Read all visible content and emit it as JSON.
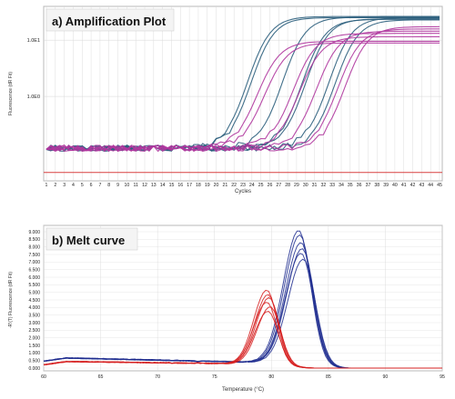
{
  "colors": {
    "blue_series": "#2c5f7d",
    "navy_series": "#1f2d8f",
    "magenta_series": "#b0379e",
    "red_series": "#d62020",
    "threshold": "#d94040",
    "frame": "#b9b9b9",
    "grid": "#d6d6d6",
    "title_box": "#f4f4f4"
  },
  "chart_data": [
    {
      "type": "line",
      "title": "a) Amplification Plot",
      "xlabel": "Cycles",
      "ylabel": "Fluorescence (dR Fit)",
      "x_tick_labels": [
        "1",
        "2",
        "3",
        "4",
        "5",
        "6",
        "7",
        "8",
        "9",
        "10",
        "11",
        "12",
        "13",
        "14",
        "15",
        "16",
        "17",
        "18",
        "19",
        "20",
        "21",
        "22",
        "23",
        "24",
        "25",
        "26",
        "27",
        "28",
        "29",
        "30",
        "31",
        "32",
        "33",
        "34",
        "35",
        "36",
        "37",
        "38",
        "39",
        "40",
        "41",
        "42",
        "43",
        "44",
        "45"
      ],
      "y_tick_labels": [
        "1.0E1",
        "1.0E0"
      ],
      "y_scale": "log",
      "xlim": [
        1,
        45
      ],
      "ylim_log10": [
        -1.5,
        1.6
      ],
      "threshold_log10": -1.35,
      "baseline_log10": -0.92,
      "series": [
        {
          "group": "blue",
          "ct": 23.5,
          "plateau_log10": 1.42
        },
        {
          "group": "blue",
          "ct": 23.9,
          "plateau_log10": 1.4
        },
        {
          "group": "blue",
          "ct": 27.4,
          "plateau_log10": 1.41
        },
        {
          "group": "blue",
          "ct": 29.6,
          "plateau_log10": 1.37
        },
        {
          "group": "blue",
          "ct": 30.0,
          "plateau_log10": 1.38
        },
        {
          "group": "blue",
          "ct": 32.6,
          "plateau_log10": 1.4
        },
        {
          "group": "blue",
          "ct": 33.3,
          "plateau_log10": 1.36
        },
        {
          "group": "magenta",
          "ct": 24.6,
          "plateau_log10": 0.98
        },
        {
          "group": "magenta",
          "ct": 25.4,
          "plateau_log10": 0.95
        },
        {
          "group": "magenta",
          "ct": 28.6,
          "plateau_log10": 1.12
        },
        {
          "group": "magenta",
          "ct": 29.3,
          "plateau_log10": 1.06
        },
        {
          "group": "magenta",
          "ct": 31.2,
          "plateau_log10": 1.16
        },
        {
          "group": "magenta",
          "ct": 33.6,
          "plateau_log10": 1.2
        },
        {
          "group": "magenta",
          "ct": 34.4,
          "plateau_log10": 1.24
        }
      ]
    },
    {
      "type": "line",
      "title": "b) Melt curve",
      "xlabel": "Temperature (°C)",
      "ylabel": "-R'(T) Fluorescence (dR Fit)",
      "x_tick_labels": [
        "60",
        "65",
        "70",
        "75",
        "80",
        "85",
        "90",
        "95"
      ],
      "y_tick_labels": [
        "0.000",
        "0.500",
        "1.000",
        "1.500",
        "2.000",
        "2.500",
        "3.000",
        "3.500",
        "4.000",
        "4.500",
        "5.000",
        "5.500",
        "6.000",
        "6.500",
        "7.000",
        "7.500",
        "8.000",
        "8.500",
        "9.000"
      ],
      "xlim": [
        60,
        95
      ],
      "ylim": [
        0,
        9
      ],
      "series": [
        {
          "group": "navy",
          "tm": 82.4,
          "peak": 8.9
        },
        {
          "group": "navy",
          "tm": 82.5,
          "peak": 8.6
        },
        {
          "group": "navy",
          "tm": 82.6,
          "peak": 8.1
        },
        {
          "group": "navy",
          "tm": 82.7,
          "peak": 7.7
        },
        {
          "group": "navy",
          "tm": 82.6,
          "peak": 7.4
        },
        {
          "group": "navy",
          "tm": 82.8,
          "peak": 7.0
        },
        {
          "group": "red",
          "tm": 79.6,
          "peak": 5.0
        },
        {
          "group": "red",
          "tm": 79.7,
          "peak": 4.7
        },
        {
          "group": "red",
          "tm": 79.8,
          "peak": 4.5
        },
        {
          "group": "red",
          "tm": 79.6,
          "peak": 4.2
        },
        {
          "group": "red",
          "tm": 79.9,
          "peak": 3.9
        },
        {
          "group": "red",
          "tm": 79.7,
          "peak": 3.6
        }
      ]
    }
  ]
}
